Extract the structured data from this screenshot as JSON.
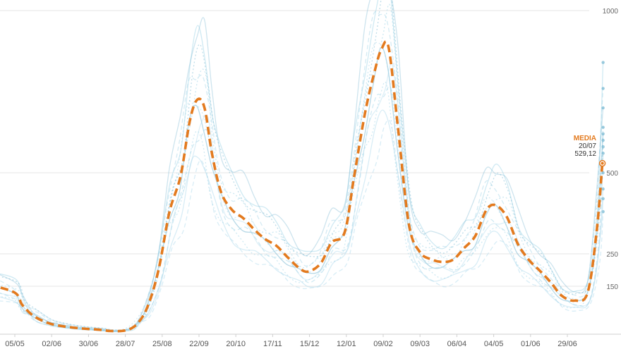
{
  "chart_data": {
    "type": "line",
    "x_ticks": [
      "05/05",
      "02/06",
      "30/06",
      "28/07",
      "25/08",
      "22/09",
      "20/10",
      "17/11",
      "15/12",
      "12/01",
      "09/02",
      "09/03",
      "06/04",
      "04/05",
      "01/06",
      "29/06"
    ],
    "y_ticks": [
      150,
      250,
      500,
      1000
    ],
    "ylim": [
      0,
      1000
    ],
    "grid": true,
    "colors": {
      "media": "#e37a1e",
      "series": "#a9d8ea",
      "series_dark": "#6fb3cf",
      "grid": "#e6e6e6"
    },
    "media_series": {
      "name": "MEDIA",
      "points": [
        [
          -0.7,
          155
        ],
        [
          0.0,
          130
        ],
        [
          0.2,
          92
        ],
        [
          0.5,
          58
        ],
        [
          0.9,
          35
        ],
        [
          1.3,
          25
        ],
        [
          1.8,
          18
        ],
        [
          2.3,
          14
        ],
        [
          2.6,
          10
        ],
        [
          3.0,
          12
        ],
        [
          3.3,
          30
        ],
        [
          3.6,
          85
        ],
        [
          3.9,
          200
        ],
        [
          4.2,
          380
        ],
        [
          4.5,
          490
        ],
        [
          4.75,
          660
        ],
        [
          4.95,
          725
        ],
        [
          5.15,
          700
        ],
        [
          5.35,
          560
        ],
        [
          5.6,
          440
        ],
        [
          5.9,
          385
        ],
        [
          6.2,
          360
        ],
        [
          6.5,
          325
        ],
        [
          6.8,
          295
        ],
        [
          7.1,
          275
        ],
        [
          7.4,
          240
        ],
        [
          7.7,
          208
        ],
        [
          7.95,
          195
        ],
        [
          8.3,
          220
        ],
        [
          8.6,
          285
        ],
        [
          8.95,
          315
        ],
        [
          9.2,
          480
        ],
        [
          9.5,
          680
        ],
        [
          9.75,
          805
        ],
        [
          9.95,
          880
        ],
        [
          10.15,
          885
        ],
        [
          10.4,
          640
        ],
        [
          10.7,
          340
        ],
        [
          11.0,
          255
        ],
        [
          11.3,
          233
        ],
        [
          11.6,
          225
        ],
        [
          11.9,
          232
        ],
        [
          12.2,
          268
        ],
        [
          12.5,
          305
        ],
        [
          12.8,
          385
        ],
        [
          13.05,
          400
        ],
        [
          13.35,
          365
        ],
        [
          13.65,
          282
        ],
        [
          13.95,
          232
        ],
        [
          14.25,
          198
        ],
        [
          14.55,
          162
        ],
        [
          14.85,
          120
        ],
        [
          15.2,
          105
        ],
        [
          15.55,
          130
        ],
        [
          15.8,
          325
        ],
        [
          15.95,
          529.12
        ]
      ],
      "last_label": {
        "title": "MEDIA",
        "date": "20/07",
        "value": "529,12"
      }
    },
    "series": [
      {
        "scale": 1.25,
        "shift": 0.05,
        "style": "solid",
        "opacity": 0.55,
        "last": 840
      },
      {
        "scale": 1.15,
        "shift": -0.1,
        "style": "dash",
        "opacity": 0.5,
        "last": 760
      },
      {
        "scale": 1.08,
        "shift": 0.12,
        "style": "dot",
        "opacity": 0.6,
        "last": 640
      },
      {
        "scale": 0.95,
        "shift": -0.05,
        "style": "solid",
        "opacity": 0.5,
        "last": 620
      },
      {
        "scale": 0.88,
        "shift": 0.15,
        "style": "dash",
        "opacity": 0.55,
        "last": 560
      },
      {
        "scale": 0.82,
        "shift": -0.12,
        "style": "dot",
        "opacity": 0.55,
        "last": 500
      },
      {
        "scale": 0.76,
        "shift": 0.08,
        "style": "solid",
        "opacity": 0.45,
        "last": 450
      },
      {
        "scale": 1.32,
        "shift": 0.0,
        "style": "solid",
        "opacity": 0.35,
        "last": 700
      },
      {
        "scale": 0.7,
        "shift": 0.2,
        "style": "dash",
        "opacity": 0.45,
        "last": 380
      },
      {
        "scale": 1.02,
        "shift": -0.18,
        "style": "dot",
        "opacity": 0.5,
        "last": 600
      },
      {
        "scale": 0.9,
        "shift": 0.25,
        "style": "solid",
        "opacity": 0.4,
        "last": 420
      },
      {
        "scale": 1.18,
        "shift": 0.18,
        "style": "dot",
        "opacity": 0.45,
        "last": 580
      }
    ]
  }
}
